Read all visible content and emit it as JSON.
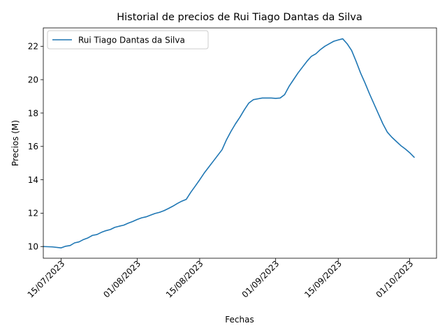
{
  "chart_data": {
    "type": "line",
    "title": "Historial de precios de Rui Tiago Dantas da Silva",
    "xlabel": "Fechas",
    "ylabel": "Precios (M)",
    "legend_position": "top-left",
    "grid": false,
    "xlim": [
      "2023-07-11",
      "2023-10-07"
    ],
    "ylim": [
      9.3,
      23.1
    ],
    "x_ticks": [
      "2023-07-15",
      "2023-08-01",
      "2023-08-15",
      "2023-09-01",
      "2023-09-15",
      "2023-10-01"
    ],
    "x_tick_labels": [
      "15/07/2023",
      "01/08/2023",
      "15/08/2023",
      "01/09/2023",
      "15/09/2023",
      "01/10/2023"
    ],
    "y_ticks": [
      10,
      12,
      14,
      16,
      18,
      20,
      22
    ],
    "y_tick_labels": [
      "10",
      "12",
      "14",
      "16",
      "18",
      "20",
      "22"
    ],
    "series": [
      {
        "name": "Rui Tiago Dantas da Silva",
        "color": "#1f77b4",
        "x": [
          "2023-07-11",
          "2023-07-13",
          "2023-07-15",
          "2023-07-16",
          "2023-07-17",
          "2023-07-18",
          "2023-07-19",
          "2023-07-20",
          "2023-07-21",
          "2023-07-22",
          "2023-07-23",
          "2023-07-24",
          "2023-07-25",
          "2023-07-26",
          "2023-07-27",
          "2023-07-28",
          "2023-07-29",
          "2023-07-30",
          "2023-07-31",
          "2023-08-01",
          "2023-08-02",
          "2023-08-03",
          "2023-08-04",
          "2023-08-05",
          "2023-08-06",
          "2023-08-07",
          "2023-08-08",
          "2023-08-09",
          "2023-08-10",
          "2023-08-11",
          "2023-08-12",
          "2023-08-13",
          "2023-08-14",
          "2023-08-15",
          "2023-08-16",
          "2023-08-17",
          "2023-08-18",
          "2023-08-19",
          "2023-08-20",
          "2023-08-21",
          "2023-08-22",
          "2023-08-23",
          "2023-08-24",
          "2023-08-25",
          "2023-08-26",
          "2023-08-27",
          "2023-08-28",
          "2023-08-29",
          "2023-08-30",
          "2023-08-31",
          "2023-09-01",
          "2023-09-02",
          "2023-09-03",
          "2023-09-04",
          "2023-09-05",
          "2023-09-06",
          "2023-09-07",
          "2023-09-08",
          "2023-09-09",
          "2023-09-10",
          "2023-09-11",
          "2023-09-12",
          "2023-09-13",
          "2023-09-14",
          "2023-09-15",
          "2023-09-16",
          "2023-09-17",
          "2023-09-18",
          "2023-09-19",
          "2023-09-20",
          "2023-09-21",
          "2023-09-22",
          "2023-09-23",
          "2023-09-24",
          "2023-09-25",
          "2023-09-26",
          "2023-09-27",
          "2023-09-28",
          "2023-09-29",
          "2023-09-30",
          "2023-10-01",
          "2023-10-02"
        ],
        "values": [
          10.0,
          9.98,
          9.92,
          10.02,
          10.06,
          10.22,
          10.28,
          10.42,
          10.52,
          10.67,
          10.72,
          10.85,
          10.95,
          11.02,
          11.15,
          11.22,
          11.28,
          11.4,
          11.5,
          11.62,
          11.72,
          11.78,
          11.88,
          11.98,
          12.05,
          12.15,
          12.28,
          12.42,
          12.58,
          12.72,
          12.83,
          13.25,
          13.62,
          14.0,
          14.4,
          14.75,
          15.1,
          15.45,
          15.8,
          16.4,
          16.9,
          17.35,
          17.75,
          18.2,
          18.6,
          18.8,
          18.85,
          18.9,
          18.9,
          18.9,
          18.88,
          18.9,
          19.1,
          19.6,
          20.0,
          20.4,
          20.75,
          21.1,
          21.4,
          21.55,
          21.8,
          22.0,
          22.15,
          22.3,
          22.38,
          22.45,
          22.15,
          21.75,
          21.1,
          20.4,
          19.8,
          19.15,
          18.55,
          17.95,
          17.35,
          16.85,
          16.55,
          16.3,
          16.05,
          15.85,
          15.62,
          15.35
        ]
      }
    ]
  }
}
